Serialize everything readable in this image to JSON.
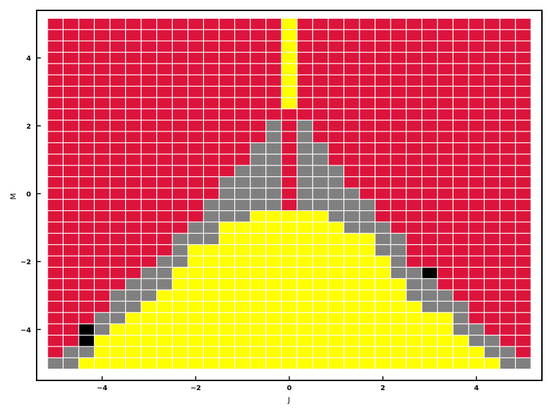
{
  "chart_data": {
    "type": "heatmap",
    "title": "",
    "xlabel": "J",
    "ylabel": "M",
    "xlim": [
      -5.4,
      5.4
    ],
    "ylim": [
      -5.5,
      5.4
    ],
    "xticks": [
      -4,
      -2,
      0,
      2,
      4
    ],
    "yticks": [
      -4,
      -2,
      0,
      2,
      4
    ],
    "xtick_labels": [
      "−4",
      "−2",
      "0",
      "2",
      "4"
    ],
    "ytick_labels": [
      "−4",
      "−2",
      "0",
      "2",
      "4"
    ],
    "grid": false,
    "legend": "none",
    "x_values": {
      "start": -5.0,
      "stop": 5.0,
      "count": 31
    },
    "y_values": {
      "start": -5.0,
      "stop": 5.0,
      "count": 31
    },
    "colors": {
      "0": "#dc143c",
      "1": "#808080",
      "2": "#ffff00",
      "3": "#000000"
    },
    "columns": [
      "1000000000000000000000000000000",
      "1100000000000000000000000000000",
      "2133000000000000000000000000000",
      "2221100000000000000000000000000",
      "2222111000000000000000000000000",
      "2222211100000000000000000000000",
      "2222221110000000000000000000000",
      "2222222111000000000000000000000",
      "2222222221110000000000000000000",
      "2222222222211000000000000000000",
      "2222222222211110000000000000000",
      "2222222222222111100000000000000",
      "2222222222222111110000000000000",
      "2222222222222211111100000000000",
      "2222222222222211111111000000000",
      "2222222222222200000000022222222",
      "2222222222222211111111000000000",
      "2222222222222211111100000000000",
      "2222222222222111110000000000000",
      "2222222222221111000000000000000",
      "2222222222221110000000000000000",
      "2222222222111000000000000000000",
      "2222222211110000000000000000000",
      "2222221110000000000000000000000",
      "2222211130000000000000000000000",
      "2222211000000000000000000000000",
      "2221110000000000000000000000000",
      "2211000000000000000000000000000",
      "2110000000000000000000000000000",
      "1100000000000000000000000000000",
      "1000000000000000000000000000000"
    ]
  }
}
